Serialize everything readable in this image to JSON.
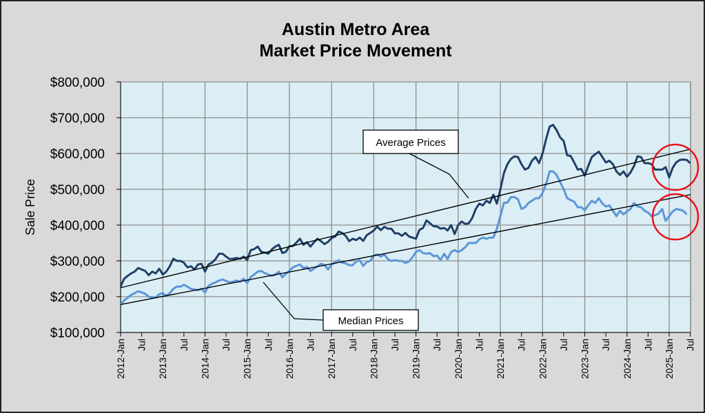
{
  "chart_data": {
    "type": "line",
    "title": [
      "Austin Metro Area",
      "Market Price Movement"
    ],
    "xlabel": "",
    "ylabel": "Sale Price",
    "ylim": [
      100000,
      800000
    ],
    "yticks": [
      100000,
      200000,
      300000,
      400000,
      500000,
      600000,
      700000,
      800000
    ],
    "ytick_labels": [
      "$100,000",
      "$200,000",
      "$300,000",
      "$400,000",
      "$500,000",
      "$600,000",
      "$700,000",
      "$800,000"
    ],
    "x_start": "2012-Jan",
    "x_end": "2025-Jul",
    "x_unit": "month",
    "xtick_labels": [
      "2012-Jan",
      "Jul",
      "2013-Jan",
      "Jul",
      "2014-Jan",
      "Jul",
      "2015-Jan",
      "Jul",
      "2016-Jan",
      "Jul",
      "2017-Jan",
      "Jul",
      "2018-Jan",
      "Jul",
      "2019-Jan",
      "Jul",
      "2020-Jan",
      "Jul",
      "2021-Jan",
      "Jul",
      "2022-Jan",
      "Jul",
      "2023-Jan",
      "Jul",
      "2024-Jan",
      "Jul",
      "2025-Jan",
      "Jul"
    ],
    "grid": true,
    "colors": {
      "average": "#1f3f66",
      "median": "#5b95d9",
      "plot_bg": "#dbeef5",
      "chart_bg": "#d9d9d9",
      "grid": "#8c8c8c",
      "highlight": "#e8141b"
    },
    "series": [
      {
        "name": "Average Prices",
        "values": [
          228000,
          250000,
          258000,
          265000,
          270000,
          280000,
          276000,
          272000,
          260000,
          270000,
          265000,
          278000,
          262000,
          270000,
          285000,
          306000,
          300000,
          300000,
          295000,
          282000,
          285000,
          276000,
          290000,
          292000,
          270000,
          290000,
          295000,
          305000,
          320000,
          320000,
          312000,
          305000,
          306000,
          308000,
          306000,
          312000,
          302000,
          330000,
          333000,
          340000,
          325000,
          323000,
          320000,
          332000,
          340000,
          345000,
          322000,
          325000,
          341000,
          342000,
          351000,
          362000,
          345000,
          352000,
          340000,
          352000,
          362000,
          355000,
          347000,
          353000,
          364000,
          368000,
          382000,
          378000,
          370000,
          355000,
          362000,
          358000,
          365000,
          356000,
          372000,
          378000,
          385000,
          396000,
          386000,
          395000,
          390000,
          390000,
          377000,
          377000,
          370000,
          378000,
          368000,
          365000,
          362000,
          387000,
          392000,
          413000,
          405000,
          397000,
          396000,
          390000,
          392000,
          385000,
          400000,
          375000,
          400000,
          410000,
          403000,
          405000,
          420000,
          445000,
          460000,
          455000,
          468000,
          462000,
          485000,
          460000,
          500000,
          545000,
          570000,
          585000,
          592000,
          590000,
          570000,
          555000,
          560000,
          580000,
          590000,
          573000,
          600000,
          640000,
          675000,
          680000,
          665000,
          645000,
          635000,
          595000,
          593000,
          575000,
          555000,
          557000,
          538000,
          565000,
          590000,
          598000,
          605000,
          590000,
          575000,
          580000,
          570000,
          550000,
          540000,
          550000,
          535000,
          547000,
          565000,
          592000,
          590000,
          573000,
          573000,
          570000,
          555000,
          555000,
          555000,
          562000,
          533000,
          560000,
          575000,
          582000,
          583000,
          582000,
          573000
        ]
      },
      {
        "name": "Median Prices",
        "values": [
          178000,
          190000,
          197000,
          205000,
          210000,
          215000,
          212000,
          208000,
          200000,
          198000,
          198000,
          207000,
          210000,
          202000,
          210000,
          222000,
          228000,
          228000,
          233000,
          228000,
          222000,
          220000,
          218000,
          222000,
          212000,
          230000,
          236000,
          240000,
          245000,
          248000,
          244000,
          240000,
          242000,
          245000,
          242000,
          250000,
          238000,
          255000,
          262000,
          270000,
          272000,
          266000,
          262000,
          258000,
          262000,
          270000,
          254000,
          264000,
          272000,
          282000,
          286000,
          290000,
          280000,
          283000,
          272000,
          278000,
          285000,
          292000,
          288000,
          276000,
          290000,
          296000,
          302000,
          295000,
          293000,
          288000,
          288000,
          298000,
          302000,
          286000,
          297000,
          300000,
          315000,
          318000,
          312000,
          318000,
          305000,
          300000,
          302000,
          300000,
          300000,
          294000,
          298000,
          310000,
          325000,
          330000,
          322000,
          320000,
          322000,
          313000,
          315000,
          302000,
          320000,
          305000,
          325000,
          330000,
          325000,
          330000,
          338000,
          350000,
          350000,
          350000,
          360000,
          365000,
          362000,
          365000,
          365000,
          390000,
          425000,
          462000,
          463000,
          478000,
          478000,
          472000,
          445000,
          450000,
          462000,
          468000,
          475000,
          475000,
          490000,
          515000,
          550000,
          550000,
          540000,
          520000,
          500000,
          475000,
          470000,
          465000,
          450000,
          450000,
          442000,
          455000,
          468000,
          462000,
          475000,
          460000,
          452000,
          455000,
          440000,
          425000,
          440000,
          430000,
          438000,
          445000,
          462000,
          452000,
          450000,
          440000,
          435000,
          425000,
          428000,
          432000,
          445000,
          412000,
          425000,
          438000,
          445000,
          443000,
          440000,
          430000
        ]
      }
    ],
    "trendlines": [
      {
        "name": "Average trend",
        "start": 225000,
        "end": 612000
      },
      {
        "name": "Median trend",
        "start": 178000,
        "end": 485000
      }
    ],
    "annotations": [
      {
        "text": "Average Prices",
        "target": "Average Prices"
      },
      {
        "text": "Median Prices",
        "target": "Median Prices"
      }
    ],
    "highlights": [
      {
        "shape": "circle",
        "target": "Average Prices",
        "period": "2025-Jan to 2025-Jul"
      },
      {
        "shape": "circle",
        "target": "Median Prices",
        "period": "2025-Jan to 2025-Jul"
      }
    ]
  }
}
